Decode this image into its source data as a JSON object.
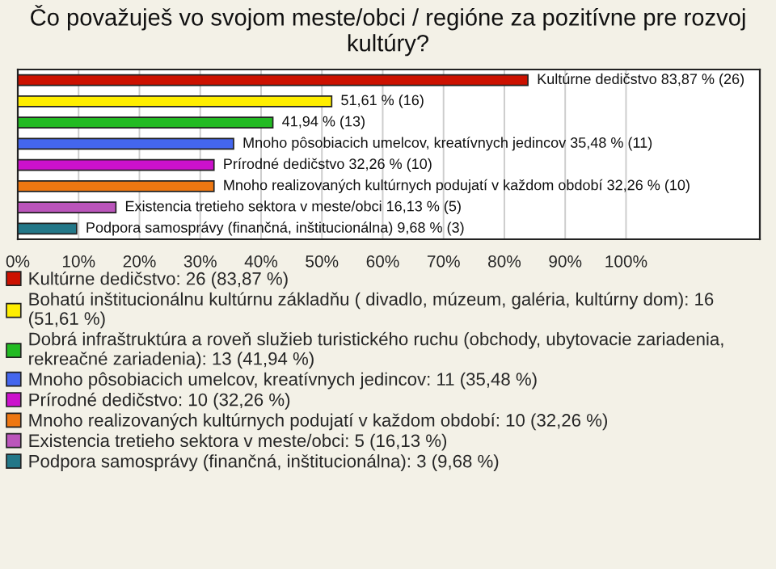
{
  "chart_data": {
    "type": "bar",
    "orientation": "horizontal",
    "title": "Čo považuješ vo svojom meste/obci / regióne za pozitívne pre rozvoj kultúry?",
    "categories": [
      null,
      null,
      null,
      null,
      null,
      null,
      null,
      null
    ],
    "series": [
      {
        "name": "Kultúrne dedičstvo: 26 (83,87 %)",
        "color": "#cc1100",
        "values": [
          83.87,
          null,
          null,
          null,
          null,
          null,
          null,
          null
        ],
        "value_labels": [
          "Kultúrne dedičstvo 83,87 % (26)",
          null,
          null,
          null,
          null,
          null,
          null,
          null
        ]
      },
      {
        "name": "Bohatú inštitucionálnu kultúrnu základňu ( divadlo, múzeum, galéria, kultúrny dom): 16 (51,61 %)",
        "color": "#ffee00",
        "values": [
          null,
          51.61,
          null,
          null,
          null,
          null,
          null,
          null
        ],
        "value_labels": [
          null,
          "51,61 % (16)",
          null,
          null,
          null,
          null,
          null,
          null
        ]
      },
      {
        "name": "Dobrá infraštruktúra a roveň služieb turistického ruchu (obchody, ubytovacie zariadenia, rekreačné zariadenia): 13 (41,94 %)",
        "color": "#22bb22",
        "values": [
          null,
          null,
          41.94,
          null,
          null,
          null,
          null,
          null
        ],
        "value_labels": [
          null,
          null,
          "41,94 % (13)",
          null,
          null,
          null,
          null,
          null
        ]
      },
      {
        "name": "Mnoho pôsobiacich umelcov, kreatívnych jedincov: 11 (35,48 %)",
        "color": "#4466ee",
        "values": [
          null,
          null,
          null,
          35.48,
          null,
          null,
          null,
          null
        ],
        "value_labels": [
          null,
          null,
          null,
          "Mnoho pôsobiacich umelcov, kreatívnych jedincov 35,48 % (11)",
          null,
          null,
          null,
          null
        ]
      },
      {
        "name": "Prírodné dedičstvo: 10 (32,26 %)",
        "color": "#cc11cc",
        "values": [
          null,
          null,
          null,
          null,
          32.26,
          null,
          null,
          null
        ],
        "value_labels": [
          null,
          null,
          null,
          null,
          "Prírodné dedičstvo 32,26 % (10)",
          null,
          null,
          null
        ]
      },
      {
        "name": "Mnoho realizovaných kultúrnych podujatí v každom období: 10 (32,26 %)",
        "color": "#ee7711",
        "values": [
          null,
          null,
          null,
          null,
          null,
          32.26,
          null,
          null
        ],
        "value_labels": [
          null,
          null,
          null,
          null,
          null,
          "Mnoho realizovaných kultúrnych podujatí v každom období 32,26 % (10)",
          null,
          null
        ]
      },
      {
        "name": "Existencia tretieho sektora v meste/obci: 5 (16,13 %)",
        "color": "#bb55bb",
        "values": [
          null,
          null,
          null,
          null,
          null,
          null,
          16.13,
          null
        ],
        "value_labels": [
          null,
          null,
          null,
          null,
          null,
          null,
          "Existencia tretieho sektora v meste/obci 16,13 % (5)",
          null
        ]
      },
      {
        "name": "Podpora samosprávy (finančná, inštitucionálna): 3 (9,68 %)",
        "color": "#227788",
        "values": [
          null,
          null,
          null,
          null,
          null,
          null,
          null,
          9.68
        ],
        "value_labels": [
          null,
          null,
          null,
          null,
          null,
          null,
          null,
          "Podpora samosprávy (finančná, inštitucionálna) 9,68 % (3)"
        ]
      }
    ],
    "xlim": [
      0,
      122
    ],
    "xticks": [
      {
        "value": 0,
        "label": "0%"
      },
      {
        "value": 10,
        "label": "10%"
      },
      {
        "value": 20,
        "label": "20%"
      },
      {
        "value": 30,
        "label": "30%"
      },
      {
        "value": 40,
        "label": "40%"
      },
      {
        "value": 50,
        "label": "50%"
      },
      {
        "value": 60,
        "label": "60%"
      },
      {
        "value": 70,
        "label": "70%"
      },
      {
        "value": 80,
        "label": "80%"
      },
      {
        "value": 90,
        "label": "90%"
      },
      {
        "value": 100,
        "label": "100%"
      }
    ],
    "tick_labels": "x",
    "grid": "x",
    "legend": "bottom"
  }
}
